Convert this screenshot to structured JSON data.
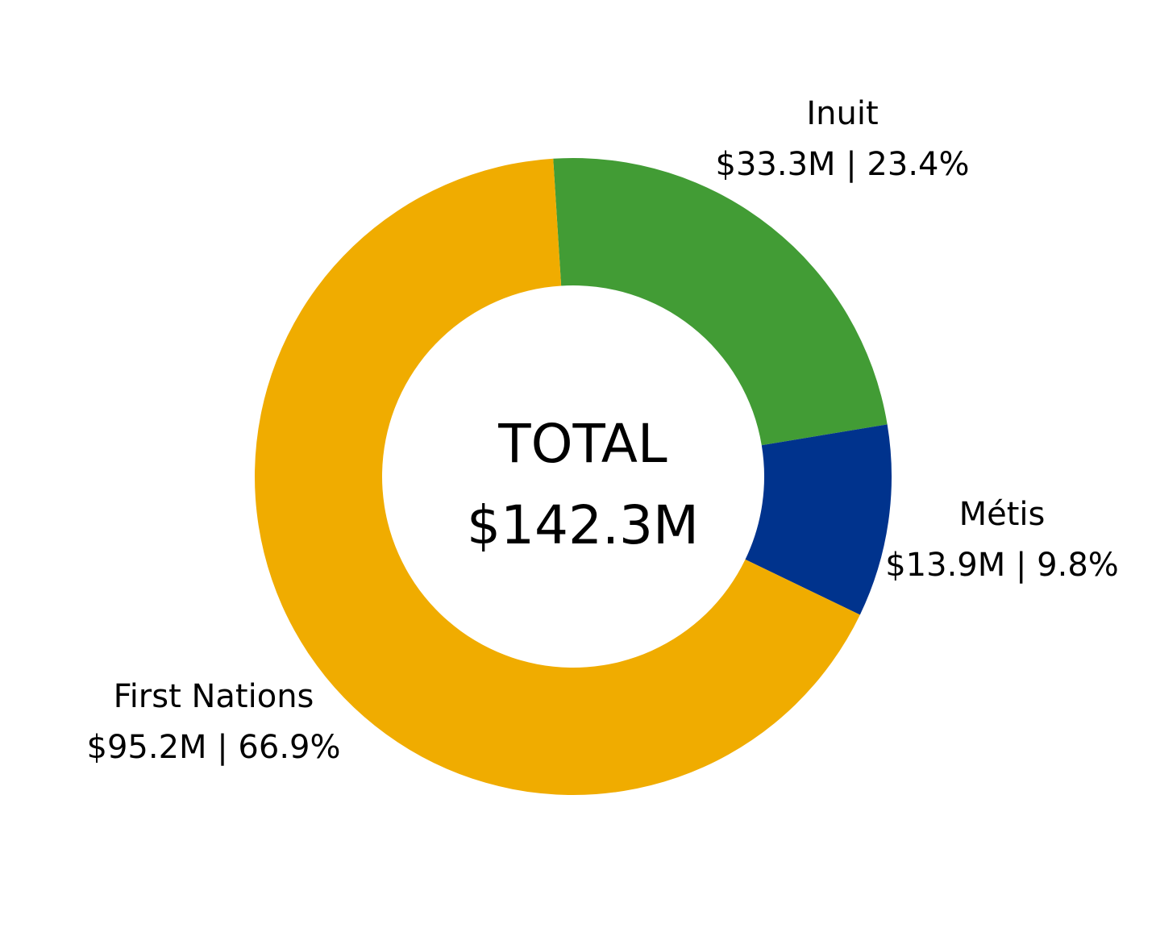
{
  "chart_data": {
    "type": "pie",
    "variant": "donut",
    "center_label": {
      "line1": "TOTAL",
      "line2": "$142.3M"
    },
    "slices": [
      {
        "name": "Inuit",
        "value": 33.3,
        "percent": 23.4,
        "value_label": "$33.3M | 23.4%",
        "color": "#429C35"
      },
      {
        "name": "Métis",
        "value": 13.9,
        "percent": 9.8,
        "value_label": "$13.9M | 9.8%",
        "color": "#00338D"
      },
      {
        "name": "First Nations",
        "value": 95.2,
        "percent": 66.9,
        "value_label": "$95.2M | 66.9%",
        "color": "#F0AC00"
      }
    ],
    "unit": "$M",
    "legend": "none"
  }
}
